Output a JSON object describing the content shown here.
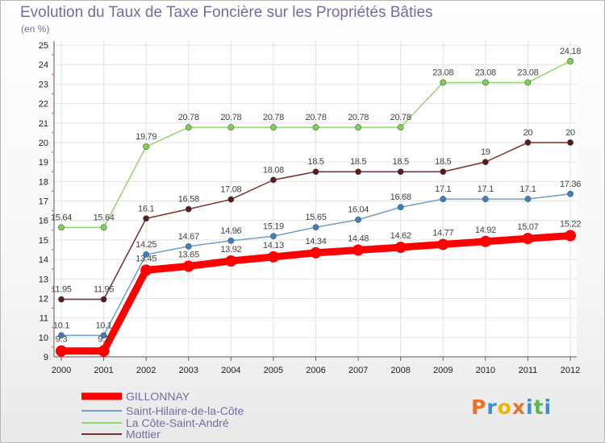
{
  "header": {
    "title": "Evolution du Taux de Taxe Foncière sur les Propriétés Bâties",
    "unit": "(en %)"
  },
  "logo": {
    "text": "Proxiti",
    "letters": [
      {
        "char": "P",
        "color": "#e8732a"
      },
      {
        "char": "r",
        "color": "#3b8fd4"
      },
      {
        "char": "o",
        "color": "#f0b400"
      },
      {
        "char": "x",
        "color": "#e8732a"
      },
      {
        "char": "i",
        "color": "#3b8fd4"
      },
      {
        "char": "t",
        "color": "#58b94a"
      },
      {
        "char": "i",
        "color": "#3b8fd4"
      }
    ]
  },
  "chart_data": {
    "type": "line",
    "title": "Evolution du Taux de Taxe Foncière sur les Propriétés Bâties",
    "ylabel": "(en %)",
    "xlabel": "",
    "ylim": [
      9,
      25
    ],
    "yticks": [
      9,
      10,
      11,
      12,
      13,
      14,
      15,
      16,
      17,
      18,
      19,
      20,
      21,
      22,
      23,
      24,
      25
    ],
    "x": [
      "2000",
      "2001",
      "2002",
      "2003",
      "2004",
      "2005",
      "2006",
      "2007",
      "2008",
      "2009",
      "2010",
      "2011",
      "2012"
    ],
    "grid": true,
    "legend_position": "bottom-left",
    "series": [
      {
        "name": "GILLONNAY",
        "color": "#ff0000",
        "emphasis": true,
        "values": [
          9.3,
          9.3,
          13.45,
          13.65,
          13.92,
          14.13,
          14.34,
          14.48,
          14.62,
          14.77,
          14.92,
          15.07,
          15.22
        ],
        "labels": [
          "9.3",
          "9.3",
          "13.45",
          "13.65",
          "13.92",
          "14.13",
          "14.34",
          "14.48",
          "14.62",
          "14.77",
          "14.92",
          "15.07",
          "15.22"
        ]
      },
      {
        "name": "Saint-Hilaire-de-la-Côte",
        "color": "#6f9fc8",
        "marker": "#3f7fc0",
        "values": [
          10.1,
          10.1,
          14.25,
          14.67,
          14.96,
          15.19,
          15.65,
          16.04,
          16.68,
          17.1,
          17.1,
          17.1,
          17.36
        ],
        "labels": [
          "10.1",
          "10.1",
          "14.25",
          "14.67",
          "14.96",
          "15.19",
          "15.65",
          "16.04",
          "16.68",
          "17.1",
          "17.1",
          "17.1",
          "17.36"
        ]
      },
      {
        "name": "La Côte-Saint-André",
        "color": "#8fd86a",
        "marker": "#7dd34f",
        "values": [
          15.64,
          15.64,
          19.79,
          20.78,
          20.78,
          20.78,
          20.78,
          20.78,
          20.78,
          23.08,
          23.08,
          23.08,
          24.18
        ],
        "labels": [
          "15.64",
          "15.64",
          "19.79",
          "20.78",
          "20.78",
          "20.78",
          "20.78",
          "20.78",
          "20.78",
          "23.08",
          "23.08",
          "23.08",
          "24.18"
        ]
      },
      {
        "name": "Mottier",
        "color": "#7a2e2e",
        "marker": "#5a1a1a",
        "values": [
          11.95,
          11.95,
          16.1,
          16.58,
          17.08,
          18.08,
          18.5,
          18.5,
          18.5,
          18.5,
          19,
          20,
          20
        ],
        "labels": [
          "11.95",
          "11.95",
          "16.1",
          "16.58",
          "17.08",
          "18.08",
          "18.5",
          "18.5",
          "18.5",
          "18.5",
          "19",
          "20",
          "20"
        ]
      }
    ]
  }
}
